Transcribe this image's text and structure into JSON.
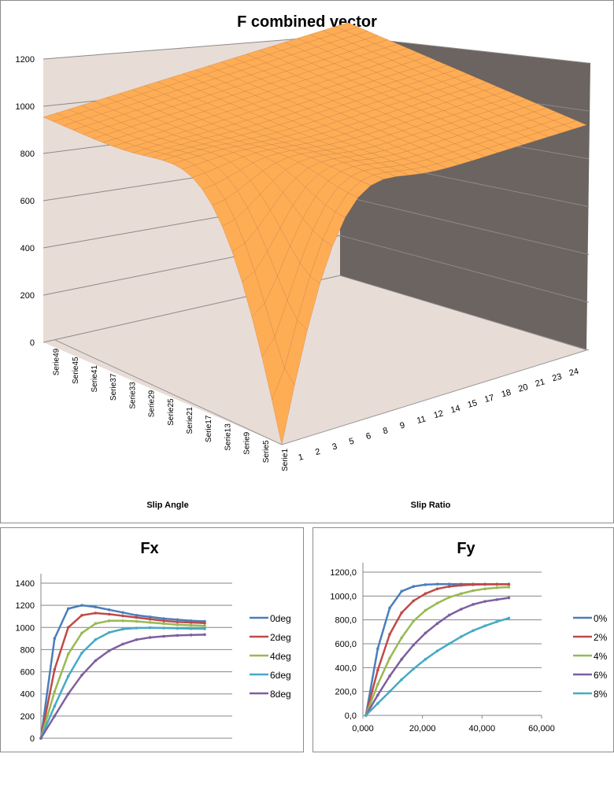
{
  "chart_data": [
    {
      "type": "surface",
      "title": "F combined vector",
      "xlabel": "Slip Angle",
      "ylabel": "Slip Ratio",
      "zlim": [
        0,
        1200
      ],
      "z_ticks": [
        "0",
        "200",
        "400",
        "600",
        "800",
        "1000",
        "1200"
      ],
      "series_labels": [
        "Serie1",
        "Serie5",
        "Serie9",
        "Serie13",
        "Serie17",
        "Serie21",
        "Serie25",
        "Serie29",
        "Serie33",
        "Serie37",
        "Serie41",
        "Serie45",
        "Serie49"
      ],
      "category_labels": [
        "1",
        "2",
        "3",
        "5",
        "6",
        "8",
        "9",
        "11",
        "12",
        "14",
        "15",
        "17",
        "18",
        "20",
        "21",
        "23",
        "24"
      ],
      "surface_colors": {
        "wall_left": "#e8dcd6",
        "wall_right": "#6b6460",
        "floor": "#e8dcd6",
        "surface": "#e8964a"
      }
    },
    {
      "type": "line",
      "title": "Fx",
      "ylim": [
        0,
        1400
      ],
      "y_ticks": [
        "0",
        "200",
        "400",
        "600",
        "800",
        "1000",
        "1200",
        "1400"
      ],
      "x": [
        0,
        4,
        8,
        12,
        16,
        20,
        24,
        28,
        32,
        36,
        40,
        44,
        48
      ],
      "legend": "right",
      "series": [
        {
          "name": "0deg",
          "color": "#4a7ebb",
          "values": [
            0,
            900,
            1170,
            1200,
            1185,
            1160,
            1135,
            1110,
            1095,
            1080,
            1070,
            1060,
            1055
          ]
        },
        {
          "name": "2deg",
          "color": "#be4b48",
          "values": [
            0,
            620,
            1000,
            1110,
            1130,
            1120,
            1105,
            1090,
            1075,
            1060,
            1050,
            1045,
            1040
          ]
        },
        {
          "name": "4deg",
          "color": "#98b954",
          "values": [
            0,
            420,
            760,
            950,
            1035,
            1060,
            1060,
            1055,
            1045,
            1035,
            1025,
            1020,
            1015
          ]
        },
        {
          "name": "6deg",
          "color": "#46aac5",
          "values": [
            0,
            290,
            560,
            770,
            890,
            955,
            985,
            995,
            998,
            995,
            992,
            990,
            988
          ]
        },
        {
          "name": "8deg",
          "color": "#7d5fa0",
          "values": [
            0,
            200,
            400,
            570,
            700,
            790,
            850,
            890,
            910,
            920,
            928,
            932,
            935
          ]
        }
      ]
    },
    {
      "type": "line",
      "title": "Fy",
      "ylim": [
        0,
        1200
      ],
      "xlim": [
        0,
        60000
      ],
      "y_ticks": [
        "0,0",
        "200,0",
        "400,0",
        "600,0",
        "800,0",
        "1000,0",
        "1200,0"
      ],
      "x_ticks": [
        "0,000",
        "20,000",
        "40,000",
        "60,000"
      ],
      "x": [
        1000,
        5000,
        9000,
        13000,
        17000,
        21000,
        25000,
        29000,
        33000,
        37000,
        41000,
        45000,
        49000
      ],
      "legend": "right",
      "series": [
        {
          "name": "0%",
          "color": "#4a7ebb",
          "values": [
            0,
            560,
            900,
            1040,
            1080,
            1095,
            1100,
            1100,
            1100,
            1100,
            1100,
            1100,
            1100
          ]
        },
        {
          "name": "2%",
          "color": "#be4b48",
          "values": [
            0,
            380,
            680,
            860,
            960,
            1020,
            1060,
            1080,
            1090,
            1095,
            1097,
            1098,
            1098
          ]
        },
        {
          "name": "4%",
          "color": "#98b954",
          "values": [
            0,
            260,
            480,
            650,
            790,
            880,
            940,
            990,
            1020,
            1045,
            1060,
            1070,
            1075
          ]
        },
        {
          "name": "6%",
          "color": "#7d5fa0",
          "values": [
            0,
            170,
            330,
            470,
            590,
            690,
            770,
            840,
            890,
            930,
            955,
            970,
            985
          ]
        },
        {
          "name": "8%",
          "color": "#46aac5",
          "values": [
            0,
            100,
            200,
            300,
            390,
            470,
            540,
            600,
            660,
            710,
            750,
            785,
            815
          ]
        }
      ]
    }
  ]
}
